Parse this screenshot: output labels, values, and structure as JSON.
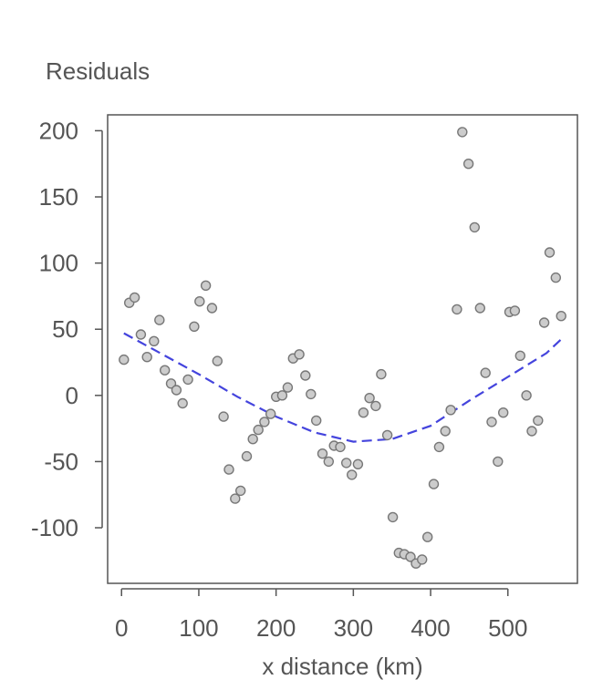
{
  "chart_data": {
    "type": "scatter",
    "title": "Residuals",
    "xlabel": "x distance (km)",
    "ylabel": "Residuals",
    "xlim": [
      -18,
      590
    ],
    "ylim": [
      -142,
      212
    ],
    "xticks": [
      0,
      100,
      200,
      300,
      400,
      500
    ],
    "yticks": [
      -100,
      -50,
      0,
      50,
      100,
      150,
      200
    ],
    "xtick_labels": [
      "0",
      "100",
      "200",
      "300",
      "400",
      "500"
    ],
    "ytick_labels": [
      "-100",
      "-50",
      "0",
      "50",
      "100",
      "150",
      "200"
    ],
    "grid": false,
    "colors": {
      "point_fill": "#cccccc",
      "point_stroke": "#777777",
      "trend": "#4444dd",
      "axis": "#555555"
    },
    "series": [
      {
        "name": "residuals",
        "points": [
          [
            3,
            27
          ],
          [
            10,
            70
          ],
          [
            17,
            74
          ],
          [
            25,
            46
          ],
          [
            33,
            29
          ],
          [
            42,
            41
          ],
          [
            49,
            57
          ],
          [
            56,
            19
          ],
          [
            64,
            9
          ],
          [
            71,
            4
          ],
          [
            79,
            -6
          ],
          [
            86,
            12
          ],
          [
            94,
            52
          ],
          [
            101,
            71
          ],
          [
            109,
            83
          ],
          [
            117,
            66
          ],
          [
            124,
            26
          ],
          [
            132,
            -16
          ],
          [
            139,
            -56
          ],
          [
            147,
            -78
          ],
          [
            154,
            -72
          ],
          [
            162,
            -46
          ],
          [
            170,
            -33
          ],
          [
            177,
            -26
          ],
          [
            185,
            -20
          ],
          [
            193,
            -14
          ],
          [
            200,
            -1
          ],
          [
            208,
            0
          ],
          [
            215,
            6
          ],
          [
            222,
            28
          ],
          [
            230,
            31
          ],
          [
            238,
            15
          ],
          [
            245,
            1
          ],
          [
            252,
            -19
          ],
          [
            260,
            -44
          ],
          [
            268,
            -50
          ],
          [
            275,
            -38
          ],
          [
            283,
            -39
          ],
          [
            291,
            -51
          ],
          [
            298,
            -60
          ],
          [
            306,
            -52
          ],
          [
            313,
            -13
          ],
          [
            321,
            -2
          ],
          [
            329,
            -8
          ],
          [
            336,
            16
          ],
          [
            344,
            -30
          ],
          [
            351,
            -92
          ],
          [
            359,
            -119
          ],
          [
            366,
            -120
          ],
          [
            374,
            -122
          ],
          [
            381,
            -127
          ],
          [
            389,
            -124
          ],
          [
            396,
            -107
          ],
          [
            404,
            -67
          ],
          [
            411,
            -39
          ],
          [
            419,
            -27
          ],
          [
            426,
            -11
          ],
          [
            434,
            65
          ],
          [
            441,
            199
          ],
          [
            449,
            175
          ],
          [
            457,
            127
          ],
          [
            464,
            66
          ],
          [
            471,
            17
          ],
          [
            479,
            -20
          ],
          [
            487,
            -50
          ],
          [
            494,
            -13
          ],
          [
            502,
            63
          ],
          [
            509,
            64
          ],
          [
            516,
            30
          ],
          [
            524,
            0
          ],
          [
            531,
            -27
          ],
          [
            539,
            -19
          ],
          [
            547,
            55
          ],
          [
            554,
            108
          ],
          [
            562,
            89
          ],
          [
            569,
            60
          ]
        ]
      },
      {
        "name": "trend",
        "style": "dashed",
        "points": [
          [
            3,
            47
          ],
          [
            50,
            32
          ],
          [
            100,
            16
          ],
          [
            150,
            -1
          ],
          [
            200,
            -16
          ],
          [
            250,
            -28
          ],
          [
            300,
            -35
          ],
          [
            350,
            -33
          ],
          [
            400,
            -23
          ],
          [
            450,
            -4
          ],
          [
            500,
            14
          ],
          [
            550,
            32
          ],
          [
            570,
            43
          ]
        ]
      }
    ]
  }
}
